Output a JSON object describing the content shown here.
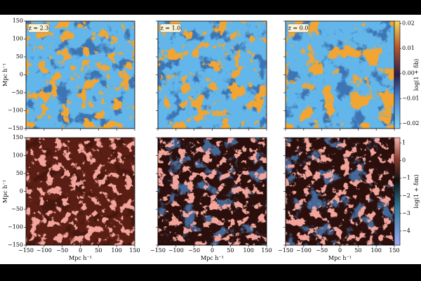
{
  "figure": {
    "panel_labels": [
      "z = 2.3",
      "z = 1.0",
      "z = 0.0"
    ],
    "axis_lim": [
      -150,
      150
    ],
    "axis_ticks": [
      {
        "value": -150,
        "label": "−150"
      },
      {
        "value": -100,
        "label": "−100"
      },
      {
        "value": -50,
        "label": "−50"
      },
      0,
      50,
      100,
      150
    ],
    "x_label": "Mpc h⁻¹",
    "y_label": "Mpc h⁻¹",
    "colorbars": [
      {
        "label": "log(1 + δb)",
        "lim": [
          -0.022,
          0.021
        ],
        "ticks": [
          {
            "value": -0.02,
            "label": "−0.02"
          },
          {
            "value": -0.01,
            "label": "−0.01"
          },
          {
            "value": 0,
            "label": "0.00"
          },
          0.01,
          0.02
        ]
      },
      {
        "label": "log(1 + δm)",
        "lim": [
          -4.8,
          1.3
        ],
        "ticks": [
          {
            "value": -4,
            "label": "−4"
          },
          {
            "value": -3,
            "label": "−3"
          },
          {
            "value": -2,
            "label": "−2"
          },
          {
            "value": -1,
            "label": "−1"
          },
          0,
          1
        ]
      }
    ]
  }
}
